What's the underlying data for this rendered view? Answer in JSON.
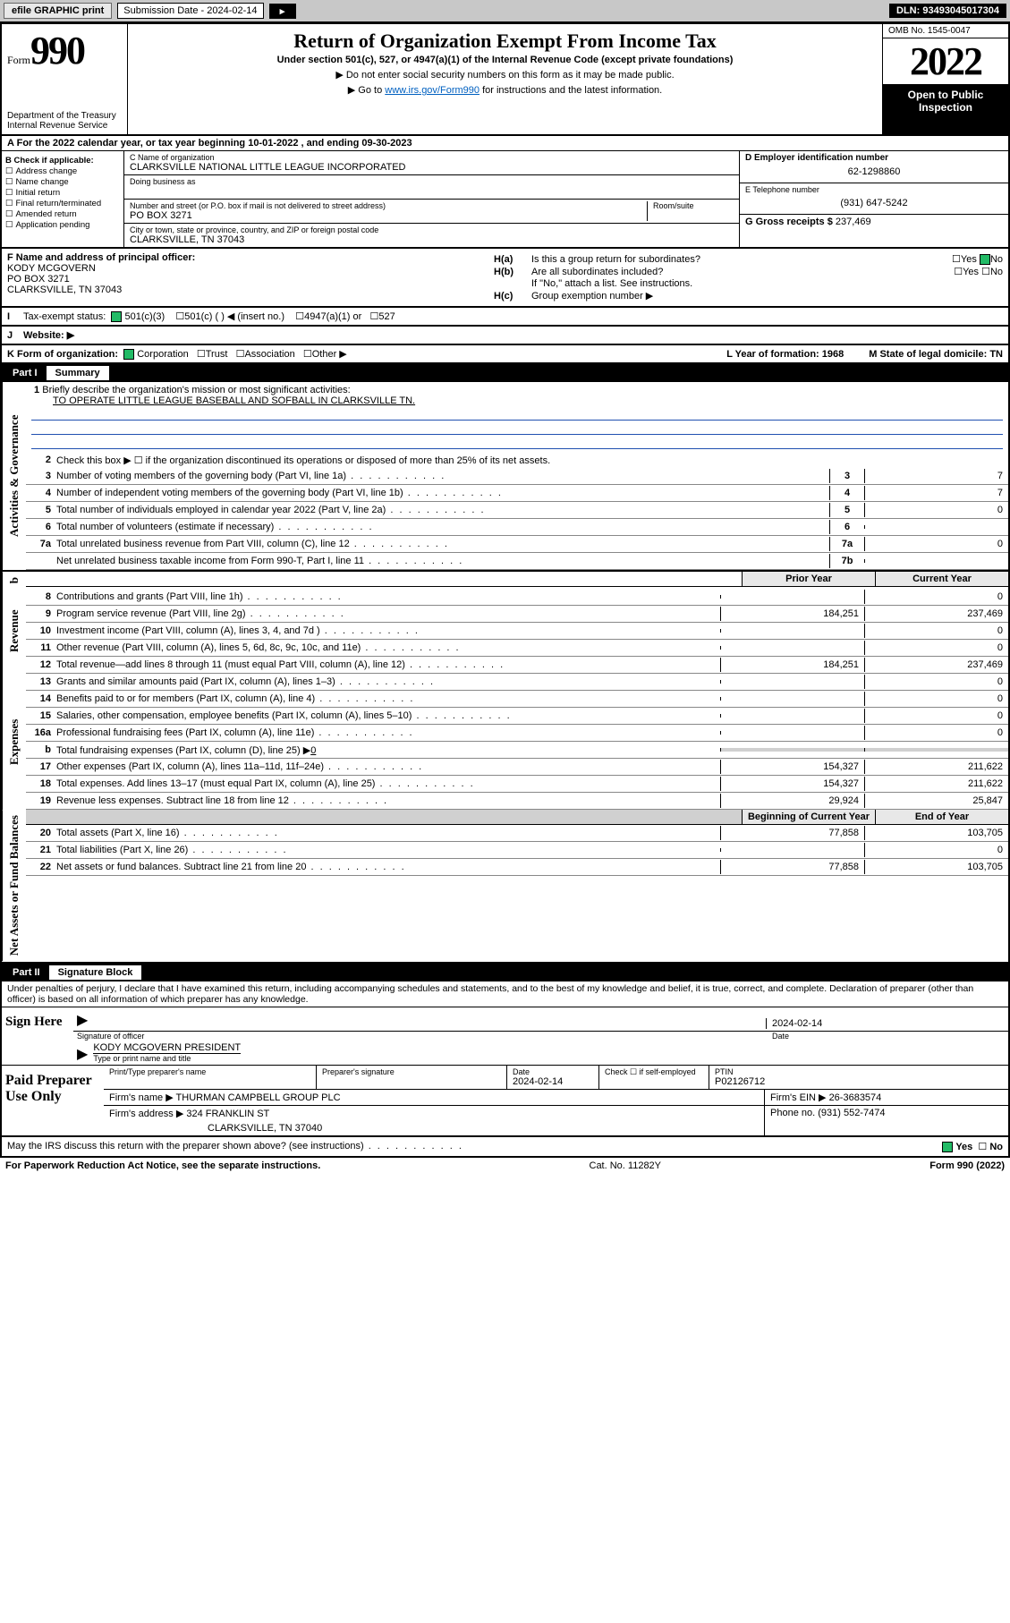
{
  "topbar": {
    "efile": "efile GRAPHIC print",
    "submission_label": "Submission Date - 2024-02-14",
    "dln": "DLN: 93493045017304"
  },
  "header": {
    "form_word": "Form",
    "form_num": "990",
    "dept": "Department of the Treasury\nInternal Revenue Service",
    "title": "Return of Organization Exempt From Income Tax",
    "subtitle": "Under section 501(c), 527, or 4947(a)(1) of the Internal Revenue Code (except private foundations)",
    "note1": "▶ Do not enter social security numbers on this form as it may be made public.",
    "note2_pre": "▶ Go to ",
    "note2_link": "www.irs.gov/Form990",
    "note2_post": " for instructions and the latest information.",
    "omb": "OMB No. 1545-0047",
    "year": "2022",
    "open": "Open to Public Inspection"
  },
  "lineA": "For the 2022 calendar year, or tax year beginning 10-01-2022     , and ending 09-30-2023",
  "B": {
    "hdr": "B Check if applicable:",
    "items": [
      "Address change",
      "Name change",
      "Initial return",
      "Final return/terminated",
      "Amended return",
      "Application pending"
    ]
  },
  "C": {
    "name_lbl": "C Name of organization",
    "name": "CLARKSVILLE NATIONAL LITTLE LEAGUE INCORPORATED",
    "dba_lbl": "Doing business as",
    "street_lbl": "Number and street (or P.O. box if mail is not delivered to street address)",
    "room_lbl": "Room/suite",
    "street": "PO BOX 3271",
    "city_lbl": "City or town, state or province, country, and ZIP or foreign postal code",
    "city": "CLARKSVILLE, TN  37043"
  },
  "D": {
    "lbl": "D Employer identification number",
    "val": "62-1298860"
  },
  "E": {
    "lbl": "E Telephone number",
    "val": "(931) 647-5242"
  },
  "G": {
    "lbl": "G Gross receipts $",
    "val": "237,469"
  },
  "F": {
    "lbl": "F  Name and address of principal officer:",
    "name": "KODY MCGOVERN",
    "addr1": "PO BOX 3271",
    "addr2": "CLARKSVILLE, TN  37043"
  },
  "H": {
    "a": "Is this a group return for subordinates?",
    "b": "Are all subordinates included?",
    "b_note": "If \"No,\" attach a list. See instructions.",
    "c": "Group exemption number ▶",
    "yes": "Yes",
    "no": "No"
  },
  "I": {
    "lbl": "Tax-exempt status:",
    "o1": "501(c)(3)",
    "o2": "501(c) (   ) ◀ (insert no.)",
    "o3": "4947(a)(1) or",
    "o4": "527"
  },
  "J": {
    "lbl": "Website: ▶"
  },
  "K": {
    "lbl": "K Form of organization:",
    "o1": "Corporation",
    "o2": "Trust",
    "o3": "Association",
    "o4": "Other ▶",
    "L": "L Year of formation: 1968",
    "M": "M State of legal domicile: TN"
  },
  "partI": {
    "num": "Part I",
    "title": "Summary"
  },
  "summary": {
    "l1_lbl": "Briefly describe the organization's mission or most significant activities:",
    "l1_val": "TO OPERATE LITTLE LEAGUE BASEBALL AND SOFBALL IN CLARKSVILLE TN.",
    "l2": "Check this box ▶ ☐  if the organization discontinued its operations or disposed of more than 25% of its net assets.",
    "lines": [
      {
        "n": "3",
        "t": "Number of voting members of the governing body (Part VI, line 1a)",
        "bn": "3",
        "v": "7"
      },
      {
        "n": "4",
        "t": "Number of independent voting members of the governing body (Part VI, line 1b)",
        "bn": "4",
        "v": "7"
      },
      {
        "n": "5",
        "t": "Total number of individuals employed in calendar year 2022 (Part V, line 2a)",
        "bn": "5",
        "v": "0"
      },
      {
        "n": "6",
        "t": "Total number of volunteers (estimate if necessary)",
        "bn": "6",
        "v": ""
      },
      {
        "n": "7a",
        "t": "Total unrelated business revenue from Part VIII, column (C), line 12",
        "bn": "7a",
        "v": "0"
      },
      {
        "n": "",
        "t": "Net unrelated business taxable income from Form 990-T, Part I, line 11",
        "bn": "7b",
        "v": ""
      }
    ],
    "hdr_prior": "Prior Year",
    "hdr_curr": "Current Year",
    "revenue": [
      {
        "n": "8",
        "t": "Contributions and grants (Part VIII, line 1h)",
        "p": "",
        "c": "0"
      },
      {
        "n": "9",
        "t": "Program service revenue (Part VIII, line 2g)",
        "p": "184,251",
        "c": "237,469"
      },
      {
        "n": "10",
        "t": "Investment income (Part VIII, column (A), lines 3, 4, and 7d )",
        "p": "",
        "c": "0"
      },
      {
        "n": "11",
        "t": "Other revenue (Part VIII, column (A), lines 5, 6d, 8c, 9c, 10c, and 11e)",
        "p": "",
        "c": "0"
      },
      {
        "n": "12",
        "t": "Total revenue—add lines 8 through 11 (must equal Part VIII, column (A), line 12)",
        "p": "184,251",
        "c": "237,469"
      }
    ],
    "expenses": [
      {
        "n": "13",
        "t": "Grants and similar amounts paid (Part IX, column (A), lines 1–3)",
        "p": "",
        "c": "0"
      },
      {
        "n": "14",
        "t": "Benefits paid to or for members (Part IX, column (A), line 4)",
        "p": "",
        "c": "0"
      },
      {
        "n": "15",
        "t": "Salaries, other compensation, employee benefits (Part IX, column (A), lines 5–10)",
        "p": "",
        "c": "0"
      },
      {
        "n": "16a",
        "t": "Professional fundraising fees (Part IX, column (A), line 11e)",
        "p": "",
        "c": "0"
      }
    ],
    "l16b_pre": "Total fundraising expenses (Part IX, column (D), line 25) ▶",
    "l16b_val": "0",
    "expenses2": [
      {
        "n": "17",
        "t": "Other expenses (Part IX, column (A), lines 11a–11d, 11f–24e)",
        "p": "154,327",
        "c": "211,622"
      },
      {
        "n": "18",
        "t": "Total expenses. Add lines 13–17 (must equal Part IX, column (A), line 25)",
        "p": "154,327",
        "c": "211,622"
      },
      {
        "n": "19",
        "t": "Revenue less expenses. Subtract line 18 from line 12",
        "p": "29,924",
        "c": "25,847"
      }
    ],
    "hdr_beg": "Beginning of Current Year",
    "hdr_end": "End of Year",
    "net": [
      {
        "n": "20",
        "t": "Total assets (Part X, line 16)",
        "p": "77,858",
        "c": "103,705"
      },
      {
        "n": "21",
        "t": "Total liabilities (Part X, line 26)",
        "p": "",
        "c": "0"
      },
      {
        "n": "22",
        "t": "Net assets or fund balances. Subtract line 21 from line 20",
        "p": "77,858",
        "c": "103,705"
      }
    ]
  },
  "vlabels": {
    "gov": "Activities & Governance",
    "rev": "Revenue",
    "exp": "Expenses",
    "net": "Net Assets or Fund Balances"
  },
  "partII": {
    "num": "Part II",
    "title": "Signature Block"
  },
  "perjury": "Under penalties of perjury, I declare that I have examined this return, including accompanying schedules and statements, and to the best of my knowledge and belief, it is true, correct, and complete. Declaration of preparer (other than officer) is based on all information of which preparer has any knowledge.",
  "sign": {
    "here": "Sign Here",
    "sig_of_officer": "Signature of officer",
    "date": "Date",
    "date_val": "2024-02-14",
    "officer": "KODY MCGOVERN  PRESIDENT",
    "type_name": "Type or print name and title"
  },
  "paid": {
    "lbl": "Paid Preparer Use Only",
    "h_print": "Print/Type preparer's name",
    "h_sig": "Preparer's signature",
    "h_date": "Date",
    "h_date_v": "2024-02-14",
    "h_check": "Check ☐ if self-employed",
    "h_ptin": "PTIN",
    "ptin_v": "P02126712",
    "firm_name_l": "Firm's name     ▶",
    "firm_name": "THURMAN CAMPBELL GROUP PLC",
    "firm_ein_l": "Firm's EIN ▶",
    "firm_ein": "26-3683574",
    "firm_addr_l": "Firm's address ▶",
    "firm_addr": "324 FRANKLIN ST",
    "firm_city": "CLARKSVILLE, TN  37040",
    "phone_l": "Phone no.",
    "phone": "(931) 552-7474"
  },
  "may_irs": "May the IRS discuss this return with the preparer shown above? (see instructions)",
  "footer": {
    "pra": "For Paperwork Reduction Act Notice, see the separate instructions.",
    "cat": "Cat. No. 11282Y",
    "formyr": "Form 990 (2022)"
  }
}
